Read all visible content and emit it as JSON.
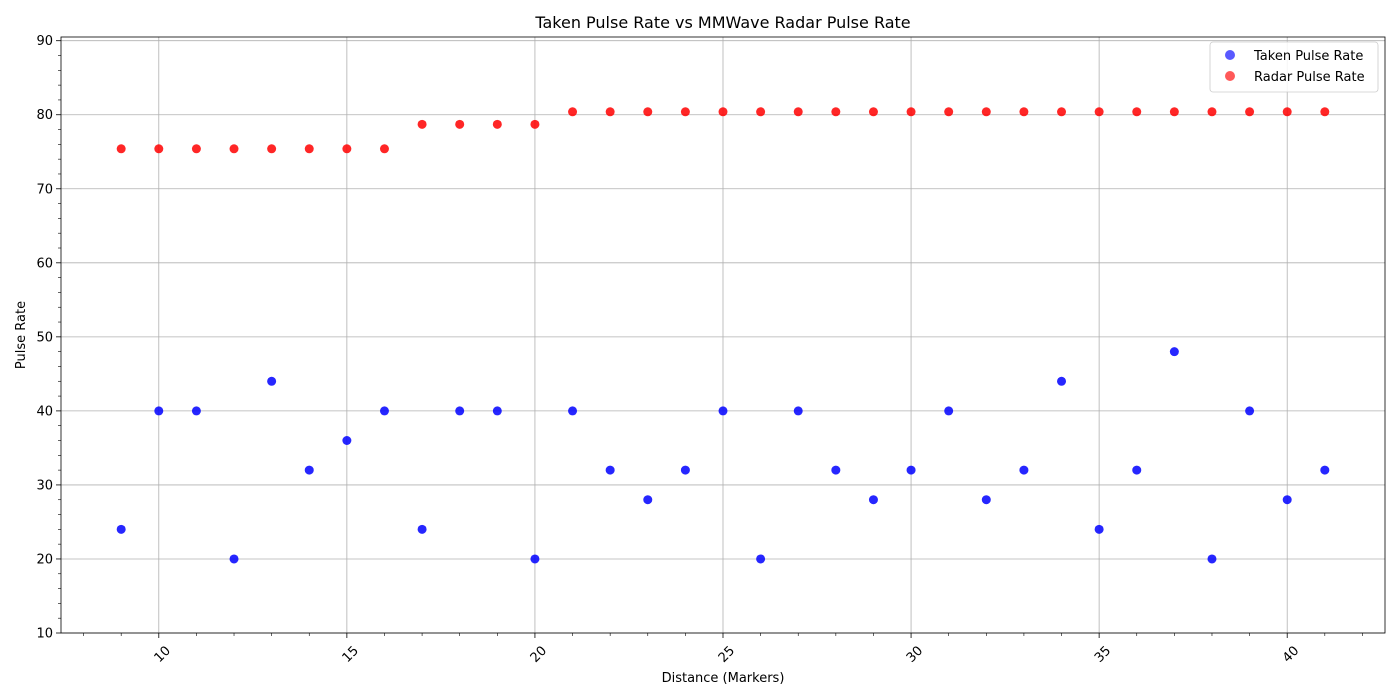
{
  "chart_data": {
    "type": "scatter",
    "title": "Taken Pulse Rate vs MMWave Radar Pulse Rate",
    "xlabel": "Distance (Markers)",
    "ylabel": "Pulse Rate",
    "xlim": [
      7.4,
      42.6
    ],
    "ylim": [
      10,
      90.5
    ],
    "xticks": [
      10,
      15,
      20,
      25,
      30,
      35,
      40
    ],
    "yticks": [
      10,
      20,
      30,
      40,
      50,
      60,
      70,
      80,
      90
    ],
    "grid": true,
    "legend_position": "top-right",
    "series": [
      {
        "name": "Taken Pulse Rate",
        "color": "#0000ff",
        "x": [
          9,
          10,
          11,
          12,
          13,
          14,
          15,
          16,
          17,
          18,
          19,
          20,
          21,
          22,
          23,
          24,
          25,
          26,
          27,
          28,
          29,
          30,
          31,
          32,
          33,
          34,
          35,
          36,
          37,
          38,
          39,
          40,
          41
        ],
        "y": [
          24,
          40,
          40,
          20,
          44,
          32,
          36,
          40,
          24,
          40,
          40,
          20,
          40,
          32,
          28,
          32,
          40,
          20,
          40,
          32,
          28,
          32,
          40,
          28,
          32,
          44,
          24,
          32,
          48,
          20,
          40,
          28,
          32
        ]
      },
      {
        "name": "Radar Pulse Rate",
        "color": "#ff0000",
        "x": [
          9,
          10,
          11,
          12,
          13,
          14,
          15,
          16,
          17,
          18,
          19,
          20,
          21,
          22,
          23,
          24,
          25,
          26,
          27,
          28,
          29,
          30,
          31,
          32,
          33,
          34,
          35,
          36,
          37,
          38,
          39,
          40,
          41
        ],
        "y": [
          75.4,
          75.4,
          75.4,
          75.4,
          75.4,
          75.4,
          75.4,
          75.4,
          78.7,
          78.7,
          78.7,
          78.7,
          80.4,
          80.4,
          80.4,
          80.4,
          80.4,
          80.4,
          80.4,
          80.4,
          80.4,
          80.4,
          80.4,
          80.4,
          80.4,
          80.4,
          80.4,
          80.4,
          80.4,
          80.4,
          80.4,
          80.4,
          80.4
        ]
      }
    ]
  }
}
